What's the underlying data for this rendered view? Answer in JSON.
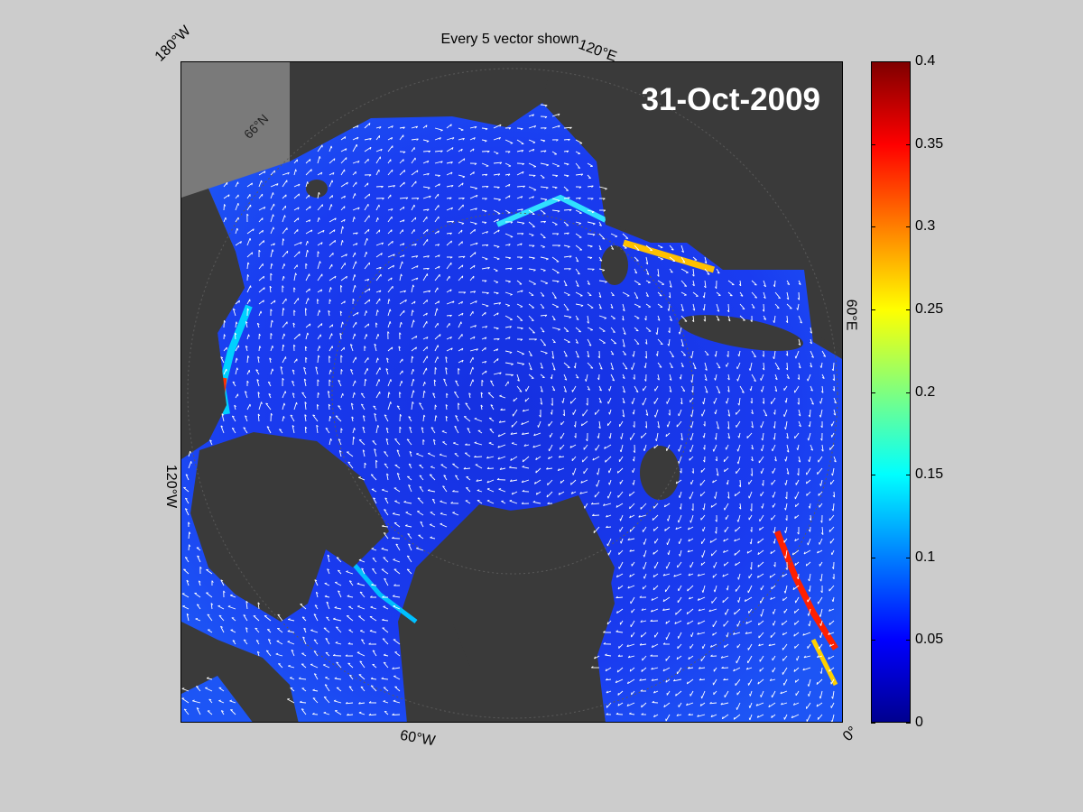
{
  "figure": {
    "title": "Every 5 vector shown",
    "date": "31-Oct-2009"
  },
  "longitude_labels": {
    "top_left": "180°W",
    "top_right": "120°E",
    "right": "60°E",
    "left": "120°W",
    "bottom": "60°W",
    "bottom_right": "0°",
    "lat_label": "66°N"
  },
  "colorbar": {
    "min": 0,
    "max": 0.4,
    "ticks": [
      "0.4",
      "0.35",
      "0.3",
      "0.25",
      "0.2",
      "0.15",
      "0.1",
      "0.05",
      "0"
    ],
    "colormap": "jet"
  },
  "colors": {
    "ocean": "#1a33e6",
    "land": "#3a3a3a",
    "outside": "#7a7a7a",
    "vectors": "#ffffff"
  }
}
